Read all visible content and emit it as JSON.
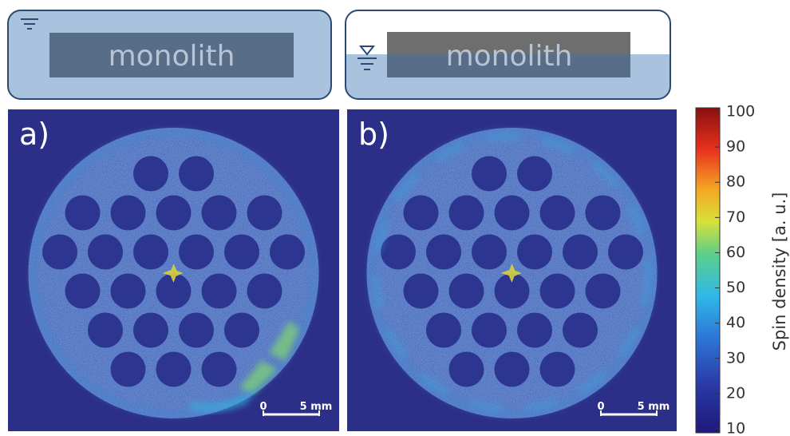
{
  "schematics": [
    {
      "label": "monolith"
    },
    {
      "label": "monolith"
    }
  ],
  "panels": [
    {
      "label": "a)",
      "scale_bar": {
        "start": "0",
        "end": "5 mm"
      }
    },
    {
      "label": "b)",
      "scale_bar": {
        "start": "0",
        "end": "5 mm"
      }
    }
  ],
  "colorbar": {
    "title": "Spin density [a. u.]",
    "lim": [
      10,
      100
    ],
    "ticks": [
      10,
      20,
      30,
      40,
      50,
      60,
      70,
      80,
      90,
      100
    ]
  }
}
